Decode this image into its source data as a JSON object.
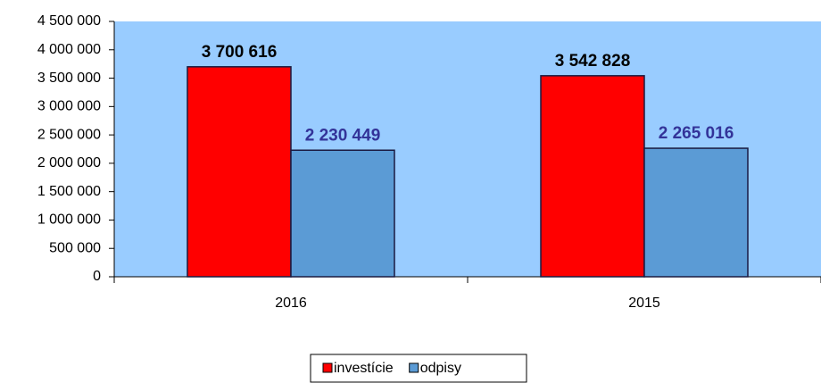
{
  "chart_data": {
    "type": "bar",
    "categories": [
      "2016",
      "2015"
    ],
    "series": [
      {
        "name": "investície",
        "color": "#ff0000",
        "label_color": "#000000",
        "values": [
          3700616,
          3542828
        ],
        "value_labels": [
          "3 700 616",
          "3 542 828"
        ]
      },
      {
        "name": "odpisy",
        "color": "#5b9bd5",
        "label_color": "#333399",
        "values": [
          2230449,
          2265016
        ],
        "value_labels": [
          "2 230 449",
          "2 265 016"
        ]
      }
    ],
    "ylim": [
      0,
      4500000
    ],
    "yticks": [
      0,
      {
        "value": 500000,
        "label": "500 000"
      },
      {
        "value": 1000000,
        "label": "1 000 000"
      },
      {
        "value": 1500000,
        "label": "1 500 000"
      },
      {
        "value": 2000000,
        "label": "2 000 000"
      },
      {
        "value": 2500000,
        "label": "2 500 000"
      },
      {
        "value": 3000000,
        "label": "3 000 000"
      },
      {
        "value": 3500000,
        "label": "3 500 000"
      },
      {
        "value": 4000000,
        "label": "4 000 000"
      },
      {
        "value": 4500000,
        "label": "4 500 000"
      }
    ],
    "plot_background": "#99ccff",
    "legend": "bottom"
  }
}
